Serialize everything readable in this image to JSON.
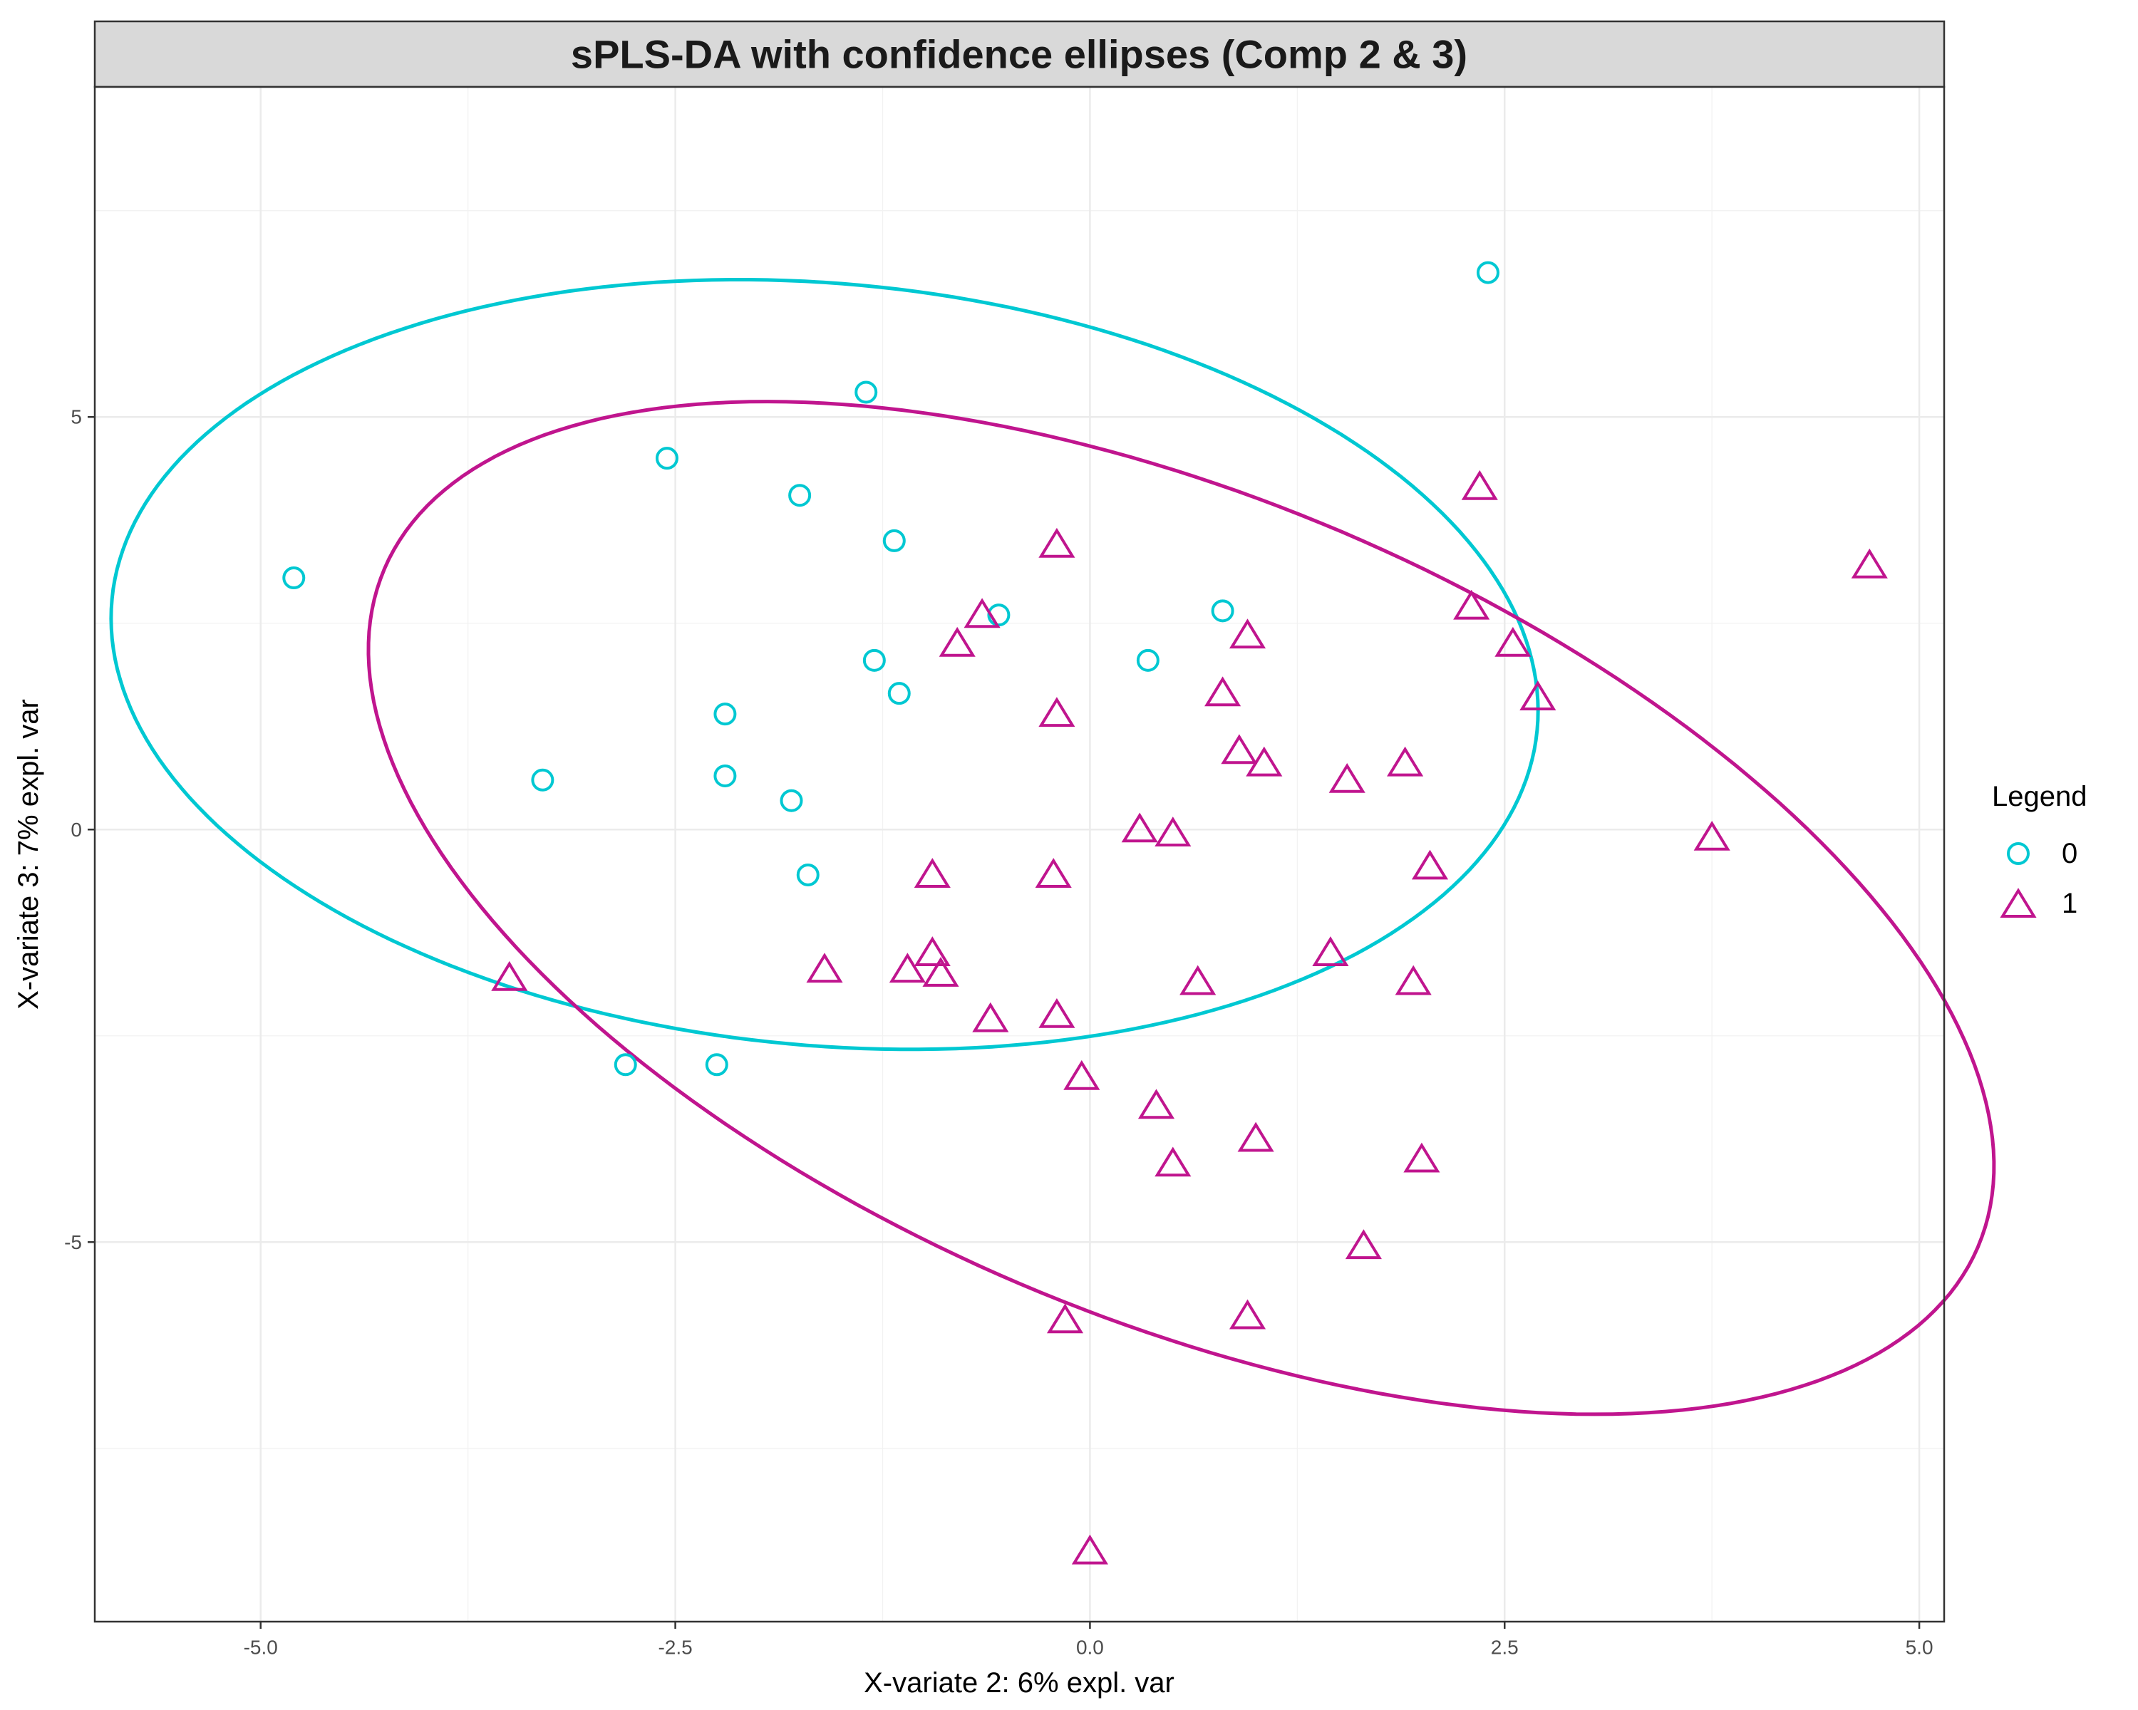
{
  "chart_data": {
    "type": "scatter",
    "title": "sPLS-DA with confidence ellipses (Comp 2 & 3)",
    "xlabel": "X-variate 2: 6% expl. var",
    "ylabel": "X-variate 3: 7% expl. var",
    "xlim": [
      -6.0,
      5.15
    ],
    "ylim": [
      -9.6,
      9.0
    ],
    "xticks": [
      -5.0,
      -2.5,
      0.0,
      2.5,
      5.0
    ],
    "xtick_labels": [
      "-5.0",
      "-2.5",
      "0.0",
      "2.5",
      "5.0"
    ],
    "yticks": [
      -5,
      0,
      5
    ],
    "ytick_labels": [
      "-5",
      "0",
      "5"
    ],
    "grid": true,
    "legend": {
      "title": "Legend",
      "position": "right",
      "entries": [
        {
          "label": "0",
          "shape": "circle",
          "color": "#00C8D2"
        },
        {
          "label": "1",
          "shape": "triangle",
          "color": "#C0158E"
        }
      ]
    },
    "series": [
      {
        "name": "0",
        "shape": "circle",
        "color": "#00C8D2",
        "points": [
          [
            -4.8,
            3.05
          ],
          [
            -3.3,
            0.6
          ],
          [
            -2.55,
            4.5
          ],
          [
            -2.8,
            -2.85
          ],
          [
            -2.25,
            -2.85
          ],
          [
            -2.2,
            1.4
          ],
          [
            -2.2,
            0.65
          ],
          [
            -1.8,
            0.35
          ],
          [
            -1.75,
            4.05
          ],
          [
            -1.7,
            -0.55
          ],
          [
            -1.35,
            5.3
          ],
          [
            -1.3,
            2.05
          ],
          [
            -1.18,
            3.5
          ],
          [
            -1.15,
            1.65
          ],
          [
            -0.55,
            2.6
          ],
          [
            0.35,
            2.05
          ],
          [
            0.8,
            2.65
          ],
          [
            2.4,
            6.75
          ]
        ]
      },
      {
        "name": "1",
        "shape": "triangle",
        "color": "#C0158E",
        "points": [
          [
            -3.5,
            -1.8
          ],
          [
            -1.6,
            -1.7
          ],
          [
            -1.1,
            -1.7
          ],
          [
            -0.95,
            -0.55
          ],
          [
            -0.95,
            -1.5
          ],
          [
            -0.9,
            -1.75
          ],
          [
            -0.8,
            2.25
          ],
          [
            -0.65,
            2.6
          ],
          [
            -0.6,
            -2.3
          ],
          [
            -0.2,
            3.45
          ],
          [
            -0.2,
            1.4
          ],
          [
            -0.22,
            -0.55
          ],
          [
            -0.2,
            -2.25
          ],
          [
            -0.15,
            -5.95
          ],
          [
            -0.05,
            -3.0
          ],
          [
            0.0,
            -8.75
          ],
          [
            0.3,
            0.0
          ],
          [
            0.4,
            -3.35
          ],
          [
            0.5,
            -0.05
          ],
          [
            0.5,
            -4.05
          ],
          [
            0.65,
            -1.85
          ],
          [
            0.8,
            1.65
          ],
          [
            0.9,
            0.95
          ],
          [
            0.95,
            2.35
          ],
          [
            1.05,
            0.8
          ],
          [
            1.0,
            -3.75
          ],
          [
            0.95,
            -5.9
          ],
          [
            1.45,
            -1.5
          ],
          [
            1.55,
            0.6
          ],
          [
            1.65,
            -5.05
          ],
          [
            1.9,
            0.8
          ],
          [
            1.95,
            -1.85
          ],
          [
            2.05,
            -0.45
          ],
          [
            2.0,
            -4.0
          ],
          [
            2.3,
            2.7
          ],
          [
            2.35,
            4.15
          ],
          [
            2.55,
            2.25
          ],
          [
            2.7,
            1.6
          ],
          [
            3.75,
            -0.1
          ],
          [
            4.7,
            3.2
          ]
        ]
      }
    ],
    "ellipses": [
      {
        "series": "0",
        "color": "#00C8D2",
        "cx": -1.6,
        "cy": 2.0,
        "rx": 4.15,
        "ry": 4.8,
        "rotation_deg": 28
      },
      {
        "series": "1",
        "color": "#C0158E",
        "cx": 0.55,
        "cy": -0.95,
        "rx": 3.75,
        "ry": 6.9,
        "rotation_deg": 33
      }
    ]
  }
}
